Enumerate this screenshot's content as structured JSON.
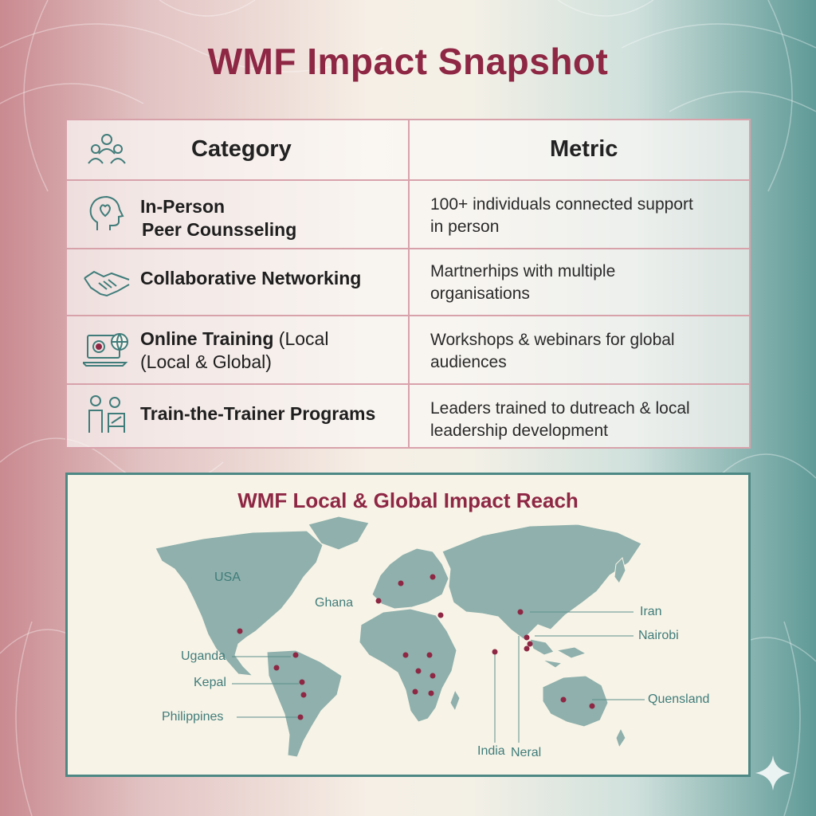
{
  "title": "WMF Impact Snapshot",
  "colors": {
    "accent": "#8e2744",
    "teal": "#4d8885",
    "border": "#d8a2ab"
  },
  "table": {
    "headers": {
      "category": "Category",
      "metric": "Metric"
    },
    "header_icon": "people-group-icon",
    "rows": [
      {
        "icon": "head-heart-icon",
        "line1": "In-Person",
        "line2": "Peer Counsseling",
        "metric1": "100+ individuals connected support",
        "metric2": "in person"
      },
      {
        "icon": "handshake-icon",
        "label": "Collaborative Networking",
        "metric1": "Martnerhips with multiple",
        "metric2": "organisations"
      },
      {
        "icon": "laptop-globe-icon",
        "label_bold": "Online Training",
        "label_rest": " (Local",
        "line2": "(Local & Global)",
        "metric1": "Workshops & webinars for global",
        "metric2": "audiences"
      },
      {
        "icon": "trainer-presenting-icon",
        "label": "Train-the-Trainer Programs",
        "metric1": "Leaders trained to dutreach & local",
        "metric2": "leadership development"
      }
    ]
  },
  "map": {
    "title": "WMF Local & Global Impact Reach",
    "labels": {
      "usa": "USA",
      "ghana": "Ghana",
      "uganda": "Uganda",
      "kepal": "Kepal",
      "philippines": "Philippines",
      "iran": "Iran",
      "nairobi": "Nairobi",
      "quensland": "Quensland",
      "india": "India",
      "neral": "Neral"
    }
  }
}
